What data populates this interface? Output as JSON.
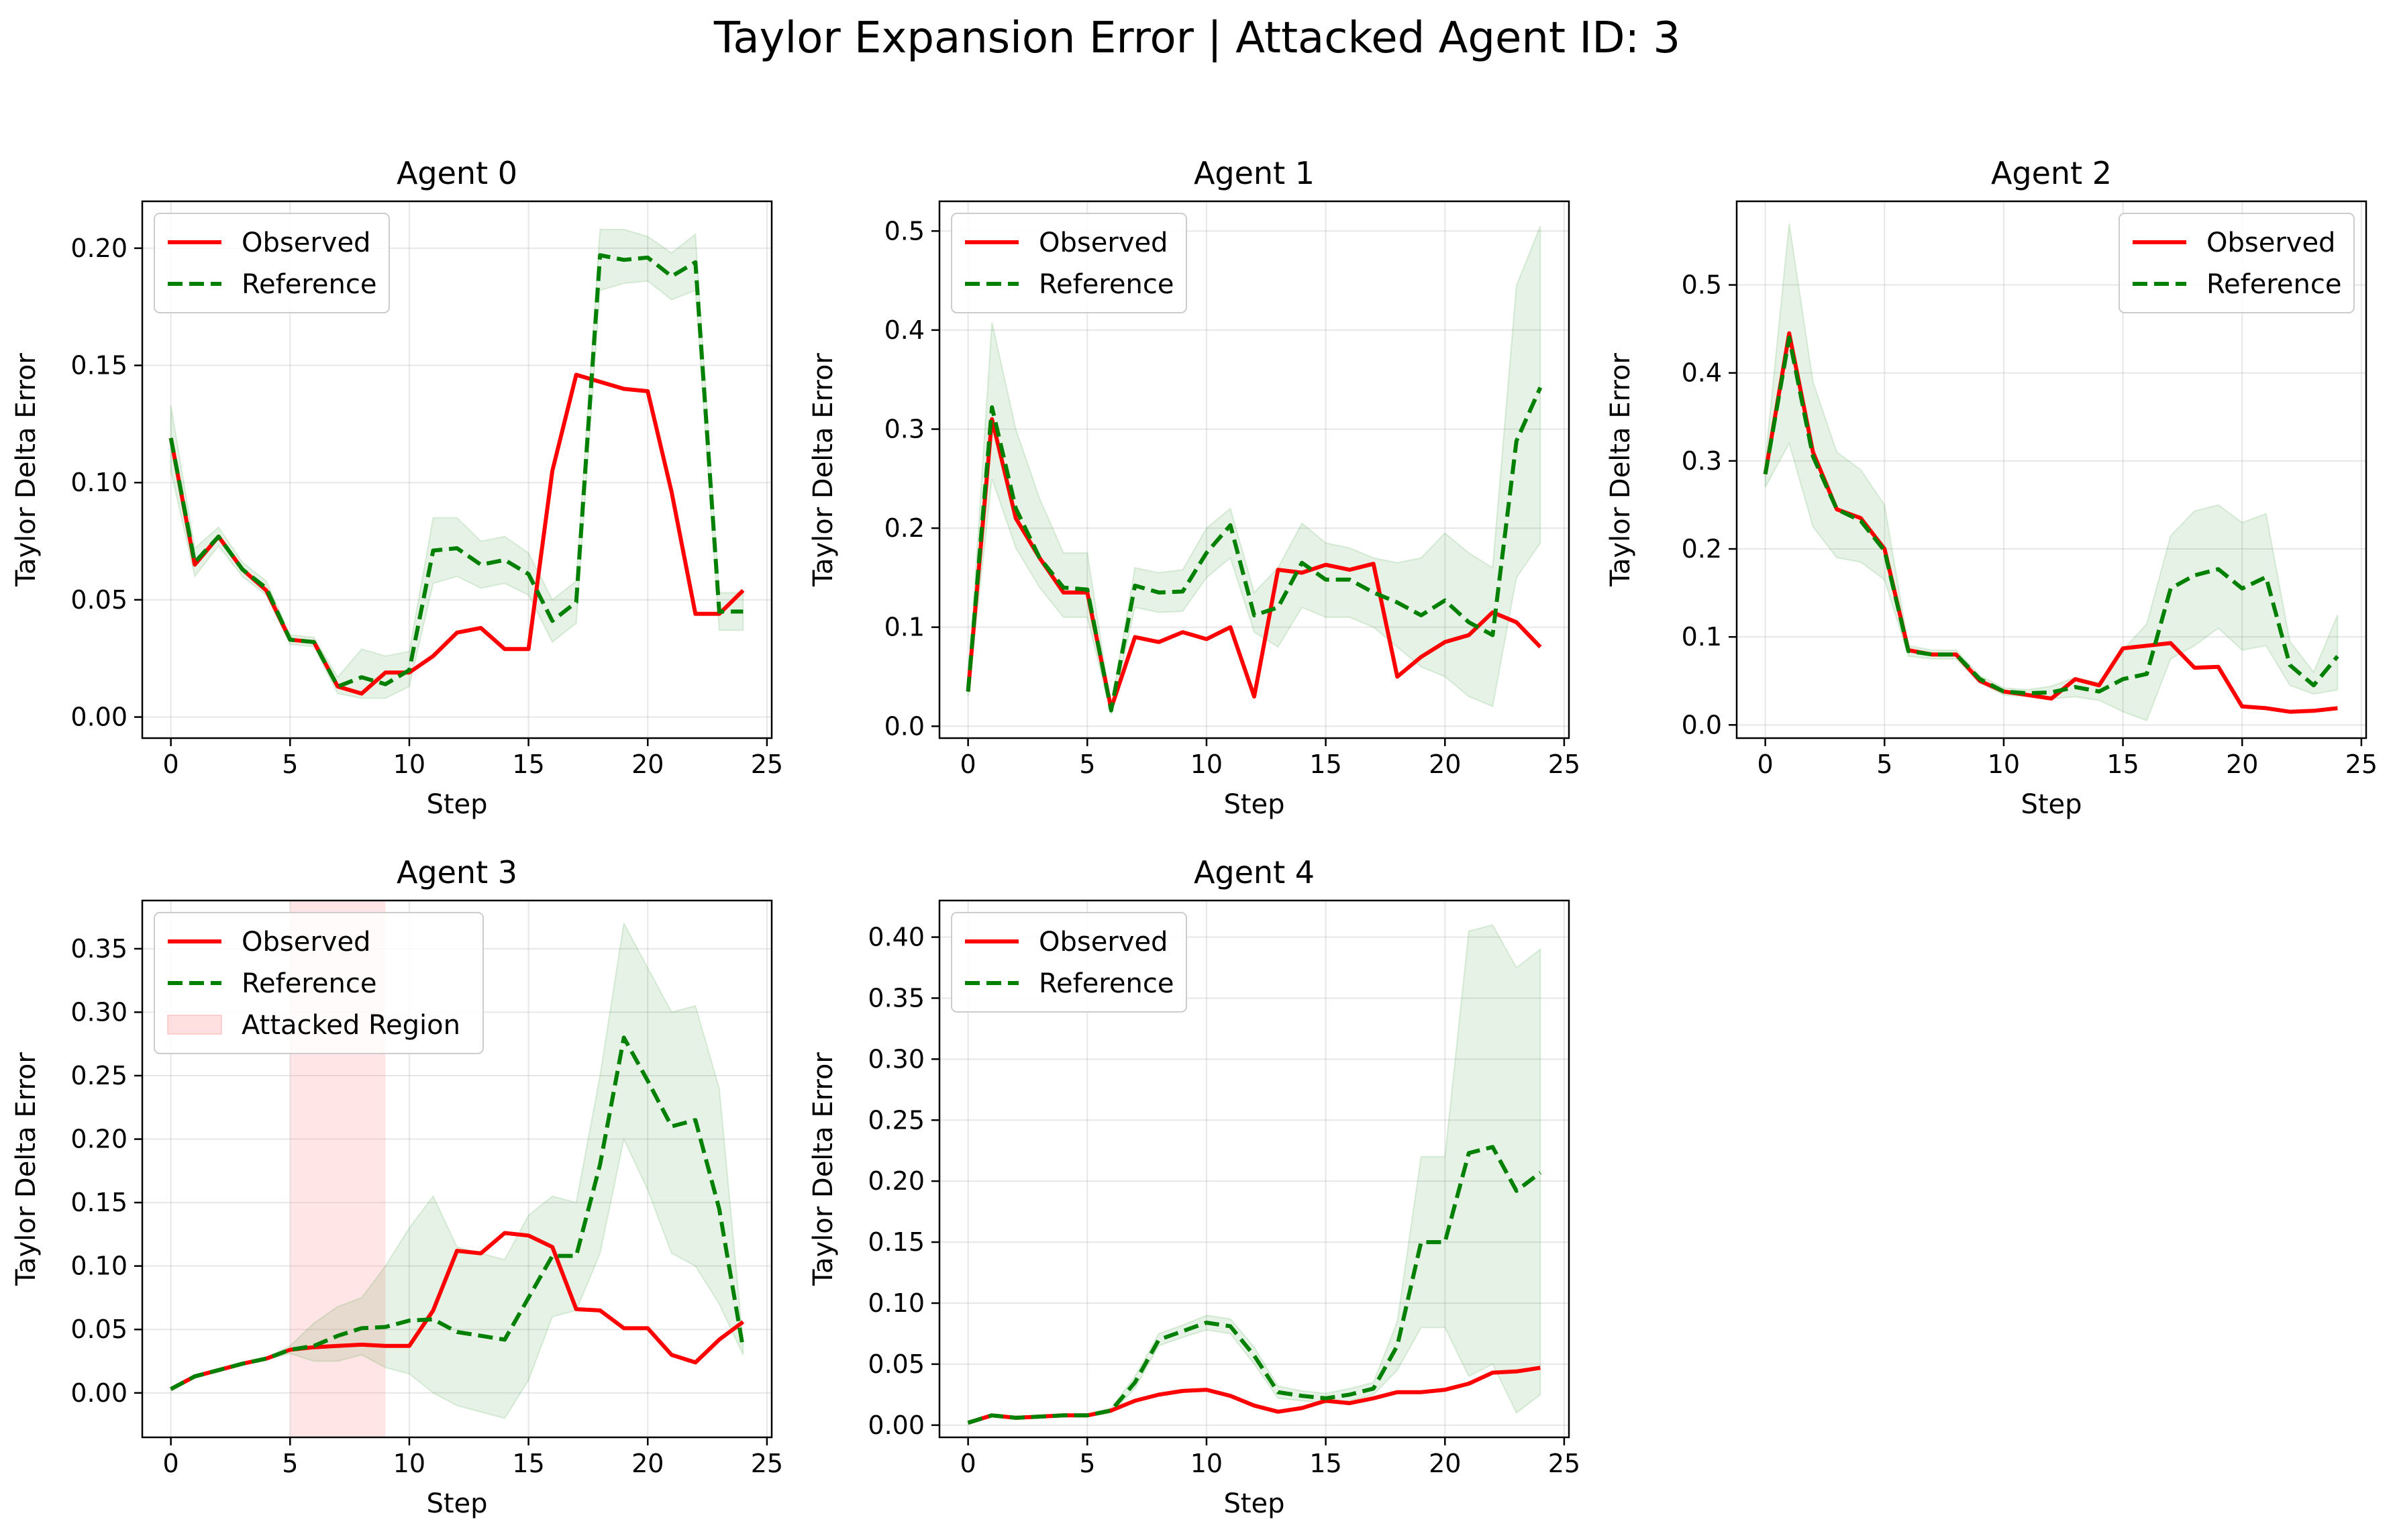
{
  "figure_title": "Taylor Expansion Error | Attacked Agent ID: 3",
  "colors": {
    "observed": "#ff0000",
    "reference": "#008000",
    "band": "#008000",
    "attack": "#ff9999"
  },
  "chart_data": [
    {
      "type": "line",
      "title": "Agent 0",
      "xlabel": "Step",
      "ylabel": "Taylor Delta Error",
      "xlim": [
        -1.2,
        25.2
      ],
      "ylim": [
        -0.009,
        0.22
      ],
      "xticks": [
        0,
        5,
        10,
        15,
        20,
        25
      ],
      "yticks": [
        0.0,
        0.05,
        0.1,
        0.15,
        0.2
      ],
      "ytick_labels": [
        "0.00",
        "0.05",
        "0.10",
        "0.15",
        "0.20"
      ],
      "grid": true,
      "legend_position": "upper-left",
      "x": [
        0,
        1,
        2,
        3,
        4,
        5,
        6,
        7,
        8,
        9,
        10,
        11,
        12,
        13,
        14,
        15,
        16,
        17,
        18,
        19,
        20,
        21,
        22,
        23,
        24
      ],
      "series": [
        {
          "name": "Observed",
          "style": "solid",
          "color": "#ff0000",
          "values": [
            0.119,
            0.065,
            0.077,
            0.063,
            0.054,
            0.033,
            0.032,
            0.013,
            0.01,
            0.019,
            0.019,
            0.026,
            0.036,
            0.038,
            0.029,
            0.029,
            0.105,
            0.146,
            0.143,
            0.14,
            0.139,
            0.096,
            0.044,
            0.044,
            0.054
          ]
        },
        {
          "name": "Reference",
          "style": "dashed",
          "color": "#008000",
          "values": [
            0.119,
            0.066,
            0.077,
            0.063,
            0.055,
            0.033,
            0.032,
            0.013,
            0.017,
            0.014,
            0.02,
            0.071,
            0.072,
            0.065,
            0.067,
            0.061,
            0.041,
            0.049,
            0.197,
            0.195,
            0.196,
            0.188,
            0.194,
            0.045,
            0.045
          ],
          "band_lower": [
            0.105,
            0.06,
            0.073,
            0.06,
            0.052,
            0.031,
            0.03,
            0.01,
            0.008,
            0.008,
            0.013,
            0.057,
            0.06,
            0.055,
            0.057,
            0.052,
            0.032,
            0.04,
            0.182,
            0.185,
            0.186,
            0.178,
            0.182,
            0.037,
            0.037
          ],
          "band_upper": [
            0.133,
            0.072,
            0.081,
            0.066,
            0.058,
            0.035,
            0.034,
            0.017,
            0.029,
            0.026,
            0.028,
            0.085,
            0.085,
            0.075,
            0.077,
            0.07,
            0.05,
            0.058,
            0.208,
            0.208,
            0.205,
            0.198,
            0.206,
            0.053,
            0.053
          ]
        }
      ],
      "legend": [
        "Observed",
        "Reference"
      ]
    },
    {
      "type": "line",
      "title": "Agent 1",
      "xlabel": "Step",
      "ylabel": "Taylor Delta Error",
      "xlim": [
        -1.2,
        25.2
      ],
      "ylim": [
        -0.012,
        0.53
      ],
      "xticks": [
        0,
        5,
        10,
        15,
        20,
        25
      ],
      "yticks": [
        0.0,
        0.1,
        0.2,
        0.3,
        0.4,
        0.5
      ],
      "ytick_labels": [
        "0.0",
        "0.1",
        "0.2",
        "0.3",
        "0.4",
        "0.5"
      ],
      "grid": true,
      "legend_position": "upper-left",
      "x": [
        0,
        1,
        2,
        3,
        4,
        5,
        6,
        7,
        8,
        9,
        10,
        11,
        12,
        13,
        14,
        15,
        16,
        17,
        18,
        19,
        20,
        21,
        22,
        23,
        24
      ],
      "series": [
        {
          "name": "Observed",
          "style": "solid",
          "color": "#ff0000",
          "values": [
            0.035,
            0.31,
            0.21,
            0.17,
            0.135,
            0.135,
            0.018,
            0.09,
            0.085,
            0.095,
            0.088,
            0.1,
            0.03,
            0.158,
            0.155,
            0.163,
            0.158,
            0.164,
            0.05,
            0.07,
            0.085,
            0.092,
            0.115,
            0.105,
            0.08
          ]
        },
        {
          "name": "Reference",
          "style": "dashed",
          "color": "#008000",
          "values": [
            0.035,
            0.322,
            0.22,
            0.17,
            0.14,
            0.138,
            0.016,
            0.142,
            0.135,
            0.136,
            0.175,
            0.203,
            0.112,
            0.12,
            0.165,
            0.148,
            0.148,
            0.135,
            0.125,
            0.112,
            0.127,
            0.105,
            0.092,
            0.288,
            0.342
          ],
          "band_lower": [
            0.03,
            0.25,
            0.18,
            0.14,
            0.11,
            0.11,
            0.012,
            0.12,
            0.115,
            0.116,
            0.15,
            0.17,
            0.095,
            0.08,
            0.12,
            0.11,
            0.11,
            0.1,
            0.08,
            0.06,
            0.05,
            0.03,
            0.02,
            0.15,
            0.185
          ],
          "band_upper": [
            0.04,
            0.408,
            0.3,
            0.23,
            0.175,
            0.175,
            0.02,
            0.16,
            0.155,
            0.158,
            0.2,
            0.22,
            0.135,
            0.16,
            0.205,
            0.185,
            0.18,
            0.17,
            0.165,
            0.17,
            0.195,
            0.175,
            0.16,
            0.445,
            0.505
          ]
        }
      ],
      "legend": [
        "Observed",
        "Reference"
      ]
    },
    {
      "type": "line",
      "title": "Agent 2",
      "xlabel": "Step",
      "ylabel": "Taylor Delta Error",
      "xlim": [
        -1.2,
        25.2
      ],
      "ylim": [
        -0.015,
        0.595
      ],
      "xticks": [
        0,
        5,
        10,
        15,
        20,
        25
      ],
      "yticks": [
        0.0,
        0.1,
        0.2,
        0.3,
        0.4,
        0.5
      ],
      "ytick_labels": [
        "0.0",
        "0.1",
        "0.2",
        "0.3",
        "0.4",
        "0.5"
      ],
      "grid": true,
      "legend_position": "upper-right",
      "x": [
        0,
        1,
        2,
        3,
        4,
        5,
        6,
        7,
        8,
        9,
        10,
        11,
        12,
        13,
        14,
        15,
        16,
        17,
        18,
        19,
        20,
        21,
        22,
        23,
        24
      ],
      "series": [
        {
          "name": "Observed",
          "style": "solid",
          "color": "#ff0000",
          "values": [
            0.285,
            0.445,
            0.31,
            0.245,
            0.235,
            0.2,
            0.085,
            0.08,
            0.08,
            0.05,
            0.038,
            0.034,
            0.03,
            0.052,
            0.045,
            0.087,
            0.09,
            0.093,
            0.065,
            0.066,
            0.021,
            0.019,
            0.015,
            0.016,
            0.019
          ]
        },
        {
          "name": "Reference",
          "style": "dashed",
          "color": "#008000",
          "values": [
            0.285,
            0.44,
            0.305,
            0.245,
            0.232,
            0.198,
            0.084,
            0.08,
            0.08,
            0.052,
            0.038,
            0.036,
            0.037,
            0.043,
            0.038,
            0.052,
            0.058,
            0.155,
            0.17,
            0.177,
            0.155,
            0.168,
            0.068,
            0.045,
            0.078
          ],
          "band_lower": [
            0.27,
            0.32,
            0.225,
            0.19,
            0.185,
            0.165,
            0.078,
            0.075,
            0.075,
            0.048,
            0.034,
            0.032,
            0.03,
            0.032,
            0.028,
            0.015,
            0.005,
            0.075,
            0.09,
            0.11,
            0.085,
            0.09,
            0.045,
            0.035,
            0.04
          ],
          "band_upper": [
            0.3,
            0.57,
            0.39,
            0.31,
            0.29,
            0.25,
            0.09,
            0.085,
            0.085,
            0.056,
            0.042,
            0.04,
            0.044,
            0.054,
            0.048,
            0.085,
            0.115,
            0.215,
            0.243,
            0.25,
            0.23,
            0.24,
            0.095,
            0.06,
            0.125
          ]
        }
      ],
      "legend": [
        "Observed",
        "Reference"
      ]
    },
    {
      "type": "line",
      "title": "Agent 3",
      "xlabel": "Step",
      "ylabel": "Taylor Delta Error",
      "xlim": [
        -1.2,
        25.2
      ],
      "ylim": [
        -0.035,
        0.388
      ],
      "xticks": [
        0,
        5,
        10,
        15,
        20,
        25
      ],
      "yticks": [
        0.0,
        0.05,
        0.1,
        0.15,
        0.2,
        0.25,
        0.3,
        0.35
      ],
      "ytick_labels": [
        "0.00",
        "0.05",
        "0.10",
        "0.15",
        "0.20",
        "0.25",
        "0.30",
        "0.35"
      ],
      "grid": true,
      "legend_position": "upper-left",
      "attacked_region": [
        5,
        9
      ],
      "x": [
        0,
        1,
        2,
        3,
        4,
        5,
        6,
        7,
        8,
        9,
        10,
        11,
        12,
        13,
        14,
        15,
        16,
        17,
        18,
        19,
        20,
        21,
        22,
        23,
        24
      ],
      "series": [
        {
          "name": "Observed",
          "style": "solid",
          "color": "#ff0000",
          "values": [
            0.003,
            0.013,
            0.018,
            0.023,
            0.027,
            0.034,
            0.036,
            0.037,
            0.038,
            0.037,
            0.037,
            0.065,
            0.112,
            0.11,
            0.126,
            0.124,
            0.115,
            0.066,
            0.065,
            0.051,
            0.051,
            0.03,
            0.024,
            0.042,
            0.056
          ]
        },
        {
          "name": "Reference",
          "style": "dashed",
          "color": "#008000",
          "values": [
            0.003,
            0.013,
            0.018,
            0.023,
            0.027,
            0.034,
            0.037,
            0.045,
            0.051,
            0.052,
            0.057,
            0.058,
            0.048,
            0.045,
            0.042,
            0.075,
            0.108,
            0.108,
            0.18,
            0.28,
            0.246,
            0.21,
            0.215,
            0.145,
            0.035
          ],
          "band_lower": [
            0.002,
            0.012,
            0.017,
            0.022,
            0.026,
            0.031,
            0.025,
            0.025,
            0.03,
            0.02,
            0.015,
            0.0,
            -0.01,
            -0.015,
            -0.02,
            0.01,
            0.06,
            0.065,
            0.11,
            0.2,
            0.16,
            0.11,
            0.1,
            0.07,
            0.03
          ],
          "band_upper": [
            0.004,
            0.014,
            0.019,
            0.024,
            0.028,
            0.037,
            0.055,
            0.068,
            0.075,
            0.1,
            0.13,
            0.155,
            0.115,
            0.11,
            0.105,
            0.14,
            0.155,
            0.15,
            0.25,
            0.37,
            0.335,
            0.3,
            0.305,
            0.24,
            0.04
          ]
        }
      ],
      "legend": [
        "Observed",
        "Reference",
        "Attacked Region"
      ]
    },
    {
      "type": "line",
      "title": "Agent 4",
      "xlabel": "Step",
      "ylabel": "Taylor Delta Error",
      "xlim": [
        -1.2,
        25.2
      ],
      "ylim": [
        -0.01,
        0.43
      ],
      "xticks": [
        0,
        5,
        10,
        15,
        20,
        25
      ],
      "yticks": [
        0.0,
        0.05,
        0.1,
        0.15,
        0.2,
        0.25,
        0.3,
        0.35,
        0.4
      ],
      "ytick_labels": [
        "0.00",
        "0.05",
        "0.10",
        "0.15",
        "0.20",
        "0.25",
        "0.30",
        "0.35",
        "0.40"
      ],
      "grid": true,
      "legend_position": "upper-left",
      "x": [
        0,
        1,
        2,
        3,
        4,
        5,
        6,
        7,
        8,
        9,
        10,
        11,
        12,
        13,
        14,
        15,
        16,
        17,
        18,
        19,
        20,
        21,
        22,
        23,
        24
      ],
      "series": [
        {
          "name": "Observed",
          "style": "solid",
          "color": "#ff0000",
          "values": [
            0.002,
            0.008,
            0.006,
            0.007,
            0.008,
            0.008,
            0.012,
            0.02,
            0.025,
            0.028,
            0.029,
            0.024,
            0.016,
            0.011,
            0.014,
            0.02,
            0.018,
            0.022,
            0.027,
            0.027,
            0.029,
            0.034,
            0.043,
            0.044,
            0.047
          ]
        },
        {
          "name": "Reference",
          "style": "dashed",
          "color": "#008000",
          "values": [
            0.002,
            0.008,
            0.006,
            0.007,
            0.008,
            0.008,
            0.012,
            0.035,
            0.07,
            0.077,
            0.084,
            0.081,
            0.057,
            0.027,
            0.024,
            0.022,
            0.025,
            0.03,
            0.065,
            0.15,
            0.15,
            0.223,
            0.228,
            0.192,
            0.207
          ],
          "band_lower": [
            0.001,
            0.007,
            0.005,
            0.006,
            0.007,
            0.007,
            0.01,
            0.03,
            0.065,
            0.072,
            0.078,
            0.075,
            0.05,
            0.022,
            0.02,
            0.018,
            0.02,
            0.025,
            0.045,
            0.08,
            0.08,
            0.04,
            0.05,
            0.01,
            0.025
          ],
          "band_upper": [
            0.003,
            0.009,
            0.007,
            0.008,
            0.009,
            0.009,
            0.014,
            0.04,
            0.075,
            0.082,
            0.09,
            0.087,
            0.064,
            0.032,
            0.028,
            0.026,
            0.03,
            0.035,
            0.085,
            0.22,
            0.22,
            0.405,
            0.41,
            0.375,
            0.39
          ]
        }
      ],
      "legend": [
        "Observed",
        "Reference"
      ]
    }
  ]
}
